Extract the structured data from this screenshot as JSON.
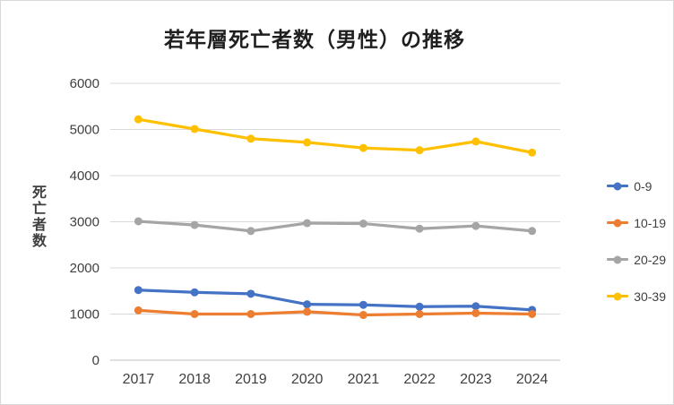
{
  "chart_data": {
    "type": "line",
    "title": "若年層死亡者数（男性）の推移",
    "ylabel": "死亡者数",
    "categories": [
      "2017",
      "2018",
      "2019",
      "2020",
      "2021",
      "2022",
      "2023",
      "2024"
    ],
    "series": [
      {
        "name": "0-9",
        "color": "#4472C4",
        "values": [
          1520,
          1470,
          1440,
          1210,
          1200,
          1160,
          1170,
          1090
        ]
      },
      {
        "name": "10-19",
        "color": "#ED7D31",
        "values": [
          1080,
          1000,
          1000,
          1050,
          980,
          1000,
          1020,
          1000
        ]
      },
      {
        "name": "20-29",
        "color": "#A5A5A5",
        "values": [
          3010,
          2930,
          2800,
          2970,
          2960,
          2850,
          2910,
          2800
        ]
      },
      {
        "name": "30-39",
        "color": "#FFC000",
        "values": [
          5220,
          5010,
          4800,
          4720,
          4600,
          4550,
          4740,
          4500
        ]
      }
    ],
    "ylim": [
      0,
      6000
    ],
    "ytick_step": 1000,
    "grid": true,
    "legend_position": "right",
    "gridline_color": "#D9D9D9",
    "axis_line_color": "#BFBFBF"
  }
}
